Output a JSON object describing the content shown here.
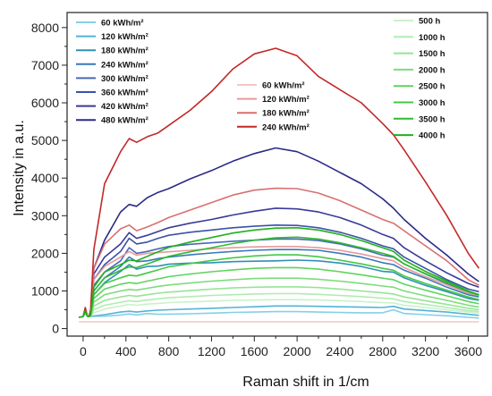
{
  "chart_data": {
    "type": "line",
    "xlabel": "Raman shift in 1/cm",
    "ylabel": "Intensity in a.u.",
    "xlim": [
      -150,
      3780
    ],
    "ylim": [
      -200,
      8400
    ],
    "xticks": [
      0,
      400,
      800,
      1200,
      1600,
      2000,
      2400,
      2800,
      3200,
      3600
    ],
    "yticks": [
      0,
      1000,
      2000,
      3000,
      4000,
      5000,
      6000,
      7000,
      8000
    ],
    "grid": false,
    "legends": [
      {
        "placement": "top-left",
        "entries": [
          {
            "label": "60 kWh/m²",
            "color": "#86cfe6"
          },
          {
            "label": "120 kWh/m²",
            "color": "#52b3d8"
          },
          {
            "label": "180 kWh/m²",
            "color": "#2f8fb8"
          },
          {
            "label": "240 kWh/m²",
            "color": "#3a78b8"
          },
          {
            "label": "300 kWh/m²",
            "color": "#4a68b8"
          },
          {
            "label": "360 kWh/m²",
            "color": "#3a52a8"
          },
          {
            "label": "420 kWh/m²",
            "color": "#3a3a98"
          },
          {
            "label": "480 kWh/m²",
            "color": "#2a2a88"
          }
        ]
      },
      {
        "placement": "top-center",
        "entries": [
          {
            "label": "60 kWh/m²",
            "color": "#f3c6c6"
          },
          {
            "label": "120 kWh/m²",
            "color": "#e59a9a"
          },
          {
            "label": "180 kWh/m²",
            "color": "#d87070"
          },
          {
            "label": "240 kWh/m²",
            "color": "#c42828"
          }
        ]
      },
      {
        "placement": "top-right",
        "entries": [
          {
            "label": "500 h",
            "color": "#c9f2c9"
          },
          {
            "label": "1000 h",
            "color": "#b0ecb0"
          },
          {
            "label": "1500 h",
            "color": "#96e496"
          },
          {
            "label": "2000 h",
            "color": "#7cdc7c"
          },
          {
            "label": "2500 h",
            "color": "#5ed35e"
          },
          {
            "label": "3000 h",
            "color": "#45c845"
          },
          {
            "label": "3500 h",
            "color": "#2fbc2f"
          },
          {
            "label": "4000 h",
            "color": "#1fb01f"
          }
        ]
      }
    ],
    "x": [
      -40,
      0,
      20,
      40,
      55,
      70,
      100,
      200,
      350,
      430,
      500,
      600,
      700,
      800,
      1000,
      1200,
      1400,
      1600,
      1800,
      2000,
      2200,
      2400,
      2600,
      2800,
      2900,
      3000,
      3200,
      3400,
      3600,
      3700
    ],
    "series_groups": [
      {
        "group": "kWh/m² (blue)",
        "series": [
          {
            "name": "60 kWh/m²",
            "color": "#86cfe6",
            "values": [
              300,
              320,
              400,
              340,
              330,
              320,
              330,
              330,
              360,
              390,
              360,
              400,
              380,
              385,
              395,
              410,
              430,
              440,
              450,
              450,
              440,
              430,
              420,
              420,
              500,
              400,
              370,
              340,
              300,
              280
            ]
          },
          {
            "name": "120 kWh/m²",
            "color": "#52b3d8",
            "values": [
              300,
              320,
              400,
              340,
              330,
              320,
              335,
              370,
              440,
              460,
              440,
              470,
              490,
              500,
              520,
              540,
              560,
              580,
              600,
              600,
              590,
              580,
              570,
              560,
              590,
              520,
              480,
              440,
              380,
              350
            ]
          },
          {
            "name": "180 kWh/m²",
            "color": "#2f8fb8",
            "values": [
              300,
              320,
              450,
              330,
              320,
              330,
              900,
              1220,
              1520,
              1700,
              1580,
              1650,
              1660,
              1710,
              1740,
              1750,
              1780,
              1790,
              1800,
              1820,
              1800,
              1740,
              1650,
              1520,
              1500,
              1350,
              1150,
              980,
              800,
              750
            ]
          },
          {
            "name": "240 kWh/m²",
            "color": "#3a78b8",
            "values": [
              300,
              320,
              460,
              330,
              320,
              340,
              1000,
              1350,
              1650,
              1900,
              1780,
              1800,
              1860,
              1900,
              1960,
              2010,
              2050,
              2080,
              2100,
              2100,
              2080,
              2000,
              1900,
              1750,
              1700,
              1550,
              1340,
              1100,
              900,
              840
            ]
          },
          {
            "name": "300 kWh/m²",
            "color": "#4a68b8",
            "values": [
              300,
              320,
              470,
              330,
              320,
              350,
              1150,
              1500,
              1800,
              2150,
              2000,
              2050,
              2120,
              2180,
              2240,
              2280,
              2320,
              2350,
              2380,
              2380,
              2340,
              2250,
              2120,
              1950,
              1900,
              1720,
              1450,
              1200,
              970,
              900
            ]
          },
          {
            "name": "360 kWh/m²",
            "color": "#3a52a8",
            "values": [
              300,
              320,
              480,
              330,
              320,
              360,
              1300,
              1700,
              2050,
              2400,
              2250,
              2300,
              2400,
              2480,
              2560,
              2620,
              2680,
              2720,
              2750,
              2740,
              2680,
              2560,
              2400,
              2200,
              2120,
              1900,
              1600,
              1300,
              1050,
              980
            ]
          },
          {
            "name": "420 kWh/m²",
            "color": "#3a3a98",
            "values": [
              300,
              320,
              490,
              330,
              320,
              370,
              1450,
              1900,
              2250,
              2550,
              2400,
              2480,
              2580,
              2680,
              2800,
              2900,
              3020,
              3120,
              3200,
              3180,
              3100,
              2950,
              2750,
              2500,
              2400,
              2150,
              1800,
              1480,
              1200,
              1100
            ]
          },
          {
            "name": "480 kWh/m²",
            "color": "#2a2a88",
            "values": [
              300,
              320,
              500,
              330,
              320,
              380,
              1600,
              2350,
              3100,
              3300,
              3250,
              3480,
              3620,
              3720,
              3980,
              4200,
              4450,
              4650,
              4800,
              4700,
              4450,
              4150,
              3850,
              3450,
              3200,
              2900,
              2400,
              1950,
              1450,
              1250
            ]
          }
        ]
      },
      {
        "group": "kWh/m² (red)",
        "series": [
          {
            "name": "60 kWh/m²",
            "color": "#f3c6c6",
            "values": [
              180,
              180,
              180,
              180,
              180,
              180,
              180,
              180,
              180,
              180,
              180,
              180,
              180,
              180,
              180,
              180,
              180,
              180,
              180,
              180,
              180,
              180,
              180,
              180,
              180,
              180,
              180,
              180,
              180,
              180
            ]
          },
          {
            "name": "120 kWh/m²",
            "color": "#e59a9a",
            "values": [
              300,
              320,
              480,
              330,
              320,
              360,
              1300,
              1650,
              1900,
              2050,
              1950,
              2000,
              2020,
              2040,
              2080,
              2120,
              2150,
              2170,
              2180,
              2180,
              2150,
              2080,
              1980,
              1860,
              1800,
              1620,
              1380,
              1160,
              940,
              880
            ]
          },
          {
            "name": "180 kWh/m²",
            "color": "#d87070",
            "values": [
              300,
              320,
              500,
              330,
              320,
              380,
              1600,
              2250,
              2650,
              2750,
              2600,
              2700,
              2820,
              2950,
              3150,
              3350,
              3550,
              3680,
              3730,
              3720,
              3600,
              3400,
              3150,
              2900,
              2800,
              2600,
              2200,
              1800,
              1300,
              1150
            ]
          },
          {
            "name": "240 kWh/m²",
            "color": "#c42828",
            "values": [
              300,
              320,
              560,
              330,
              320,
              500,
              2100,
              3850,
              4700,
              5050,
              4950,
              5100,
              5200,
              5400,
              5800,
              6300,
              6900,
              7300,
              7450,
              7250,
              6700,
              6350,
              6000,
              5450,
              5150,
              4750,
              3900,
              3000,
              2000,
              1600
            ]
          }
        ]
      },
      {
        "group": "h (green)",
        "series": [
          {
            "name": "500 h",
            "color": "#c9f2c9",
            "values": [
              300,
              320,
              420,
              330,
              320,
              320,
              420,
              520,
              600,
              640,
              620,
              650,
              670,
              690,
              710,
              730,
              750,
              760,
              770,
              770,
              760,
              740,
              720,
              690,
              680,
              620,
              560,
              500,
              440,
              410
            ]
          },
          {
            "name": "1000 h",
            "color": "#b0ecb0",
            "values": [
              300,
              320,
              420,
              330,
              320,
              325,
              500,
              620,
              700,
              740,
              720,
              760,
              790,
              820,
              850,
              880,
              900,
              920,
              930,
              930,
              910,
              880,
              850,
              810,
              790,
              720,
              640,
              560,
              480,
              450
            ]
          },
          {
            "name": "1500 h",
            "color": "#96e496",
            "values": [
              300,
              320,
              430,
              330,
              320,
              330,
              600,
              750,
              840,
              880,
              860,
              900,
              940,
              970,
              1010,
              1050,
              1080,
              1100,
              1110,
              1110,
              1090,
              1050,
              1000,
              950,
              920,
              840,
              740,
              640,
              540,
              500
            ]
          },
          {
            "name": "2000 h",
            "color": "#7cdc7c",
            "values": [
              300,
              320,
              430,
              330,
              320,
              335,
              700,
              900,
              1000,
              1040,
              1020,
              1070,
              1120,
              1160,
              1210,
              1260,
              1300,
              1330,
              1340,
              1340,
              1310,
              1260,
              1200,
              1130,
              1100,
              1000,
              870,
              750,
              620,
              570
            ]
          },
          {
            "name": "2500 h",
            "color": "#5ed35e",
            "values": [
              300,
              320,
              440,
              330,
              320,
              340,
              800,
              1050,
              1180,
              1220,
              1200,
              1260,
              1320,
              1380,
              1450,
              1510,
              1560,
              1600,
              1620,
              1620,
              1580,
              1510,
              1430,
              1340,
              1300,
              1180,
              1020,
              870,
              720,
              660
            ]
          },
          {
            "name": "3000 h",
            "color": "#45c845",
            "values": [
              300,
              320,
              450,
              330,
              320,
              350,
              900,
              1200,
              1350,
              1420,
              1400,
              1480,
              1560,
              1640,
              1730,
              1810,
              1880,
              1930,
              1960,
              1960,
              1910,
              1820,
              1720,
              1600,
              1550,
              1400,
              1200,
              1020,
              840,
              770
            ]
          },
          {
            "name": "3500 h",
            "color": "#2fbc2f",
            "values": [
              300,
              320,
              460,
              330,
              320,
              360,
              1000,
              1350,
              1550,
              1640,
              1620,
              1720,
              1820,
              1920,
              2040,
              2150,
              2260,
              2350,
              2410,
              2430,
              2380,
              2280,
              2150,
              2000,
              1920,
              1720,
              1460,
              1220,
              980,
              890
            ]
          },
          {
            "name": "4000 h",
            "color": "#1fb01f",
            "values": [
              300,
              320,
              470,
              330,
              320,
              370,
              1100,
              1500,
              1700,
              1820,
              1800,
              1920,
              2040,
              2160,
              2300,
              2420,
              2540,
              2620,
              2670,
              2680,
              2620,
              2500,
              2340,
              2150,
              2050,
              1820,
              1520,
              1260,
              1000,
              900
            ]
          }
        ]
      }
    ]
  }
}
